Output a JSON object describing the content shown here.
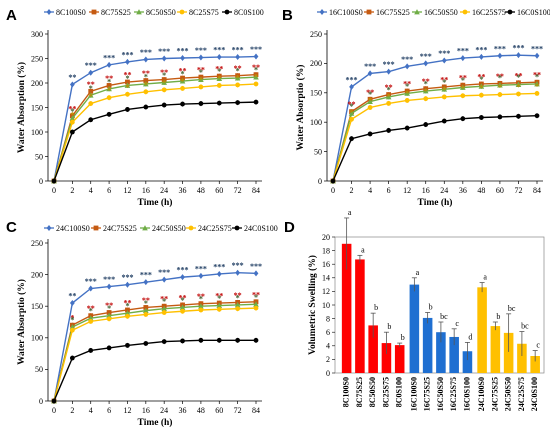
{
  "chart_data": [
    {
      "panel": "A",
      "type": "line",
      "xlabel": "Time (h)",
      "ylabel": "Water Absorption (%)",
      "x": [
        "0",
        "2",
        "4",
        "6",
        "12",
        "16",
        "24",
        "36",
        "48",
        "60",
        "72",
        "84"
      ],
      "ylim": [
        0,
        300
      ],
      "yticks": [
        0,
        50,
        100,
        150,
        200,
        250,
        300
      ],
      "legend_position": "top",
      "series": [
        {
          "name": "8C100S0",
          "color": "#4472c4",
          "marker": "diamond",
          "values": [
            0,
            197,
            221,
            237,
            243,
            248,
            250,
            251,
            252,
            253,
            253,
            254
          ],
          "sig": [
            "",
            "**",
            "***",
            "***",
            "***",
            "***",
            "***",
            "***",
            "***",
            "***",
            "***",
            "***"
          ],
          "sig_color": "#17365d"
        },
        {
          "name": "8C75S25",
          "color": "#c55a11",
          "marker": "square",
          "values": [
            0,
            133,
            183,
            195,
            202,
            205,
            207,
            210,
            212,
            214,
            215,
            217
          ],
          "sig": [
            "",
            "**",
            "**",
            "**",
            "**",
            "**",
            "**",
            "**",
            "**",
            "**",
            "**",
            "**"
          ],
          "sig_color": "#c00000"
        },
        {
          "name": "8C50S50",
          "color": "#70ad47",
          "marker": "triangle",
          "values": [
            0,
            128,
            175,
            188,
            195,
            198,
            201,
            204,
            207,
            209,
            210,
            212
          ],
          "sig": [
            "",
            "*",
            "*",
            "*",
            "*",
            "*",
            "*",
            "*",
            "*",
            "*",
            "*",
            "*"
          ],
          "sig_color": "#375623"
        },
        {
          "name": "8C25S75",
          "color": "#ffc000",
          "marker": "circle",
          "values": [
            0,
            120,
            158,
            170,
            177,
            182,
            186,
            189,
            192,
            195,
            196,
            198
          ],
          "sig": [
            "",
            "*",
            "*",
            "*",
            "*",
            "*",
            "*",
            "*",
            "*",
            "*",
            "*",
            "*"
          ],
          "sig_color": "#bf8f00"
        },
        {
          "name": "8C0S100",
          "color": "#000000",
          "marker": "circle",
          "values": [
            0,
            100,
            125,
            136,
            146,
            151,
            155,
            157,
            158,
            159,
            160,
            161
          ],
          "sig": [
            "",
            "",
            "",
            "",
            "",
            "",
            "",
            "",
            "",
            "",
            "",
            ""
          ],
          "sig_color": "#000000"
        }
      ]
    },
    {
      "panel": "B",
      "type": "line",
      "xlabel": "Time (h)",
      "ylabel": "Water Absorptio (%)",
      "x": [
        "0",
        "2",
        "4",
        "6",
        "12",
        "16",
        "24",
        "36",
        "48",
        "60",
        "72",
        "84"
      ],
      "ylim": [
        0,
        250
      ],
      "yticks": [
        0,
        50,
        100,
        150,
        200,
        250
      ],
      "legend_position": "top",
      "series": [
        {
          "name": "16C100S0",
          "color": "#4472c4",
          "marker": "diamond",
          "values": [
            0,
            160,
            183,
            186,
            195,
            200,
            205,
            209,
            211,
            213,
            214,
            213
          ],
          "sig": [
            "",
            "***",
            "***",
            "***",
            "***",
            "***",
            "***",
            "***",
            "***",
            "***",
            "***",
            "***"
          ],
          "sig_color": "#17365d"
        },
        {
          "name": "16C75S25",
          "color": "#c55a11",
          "marker": "square",
          "values": [
            0,
            118,
            139,
            147,
            153,
            157,
            160,
            163,
            165,
            166,
            167,
            168
          ],
          "sig": [
            "",
            "**",
            "**",
            "**",
            "**",
            "**",
            "**",
            "**",
            "**",
            "**",
            "**",
            "**"
          ],
          "sig_color": "#c00000"
        },
        {
          "name": "16C50S50",
          "color": "#70ad47",
          "marker": "triangle",
          "values": [
            0,
            115,
            135,
            143,
            149,
            153,
            156,
            159,
            161,
            163,
            164,
            165
          ],
          "sig": [
            "",
            "*",
            "*",
            "*",
            "*",
            "*",
            "*",
            "*",
            "*",
            "*",
            "*",
            "*"
          ],
          "sig_color": "#375623"
        },
        {
          "name": "16C25S75",
          "color": "#ffc000",
          "marker": "circle",
          "values": [
            0,
            105,
            125,
            132,
            137,
            140,
            143,
            145,
            146,
            147,
            148,
            149
          ],
          "sig": [
            "",
            "*",
            "*",
            "*",
            "*",
            "*",
            "*",
            "*",
            "*",
            "*",
            "*",
            "*"
          ],
          "sig_color": "#bf8f00"
        },
        {
          "name": "16C0S100",
          "color": "#000000",
          "marker": "circle",
          "values": [
            0,
            72,
            80,
            86,
            90,
            96,
            102,
            106,
            108,
            109,
            110,
            111
          ],
          "sig": [
            "",
            "",
            "",
            "",
            "",
            "",
            "",
            "",
            "",
            "",
            "",
            ""
          ],
          "sig_color": "#000000"
        }
      ]
    },
    {
      "panel": "C",
      "type": "line",
      "xlabel": "Time (h)",
      "ylabel": "Water Absorptio (%)",
      "x": [
        "0",
        "2",
        "4",
        "6",
        "12",
        "16",
        "24",
        "36",
        "48",
        "60",
        "72",
        "84"
      ],
      "ylim": [
        0,
        250
      ],
      "yticks": [
        0,
        50,
        100,
        150,
        200,
        250
      ],
      "legend_position": "top",
      "series": [
        {
          "name": "24C100S0",
          "color": "#4472c4",
          "marker": "diamond",
          "values": [
            0,
            155,
            178,
            181,
            184,
            188,
            192,
            196,
            198,
            201,
            203,
            202
          ],
          "sig": [
            "",
            "**",
            "***",
            "***",
            "***",
            "***",
            "***",
            "***",
            "***",
            "***",
            "***",
            "***"
          ],
          "sig_color": "#17365d"
        },
        {
          "name": "24C75S25",
          "color": "#c55a11",
          "marker": "square",
          "values": [
            0,
            120,
            135,
            140,
            144,
            148,
            150,
            152,
            154,
            155,
            156,
            157
          ],
          "sig": [
            "",
            "*",
            "**",
            "**",
            "**",
            "**",
            "**",
            "**",
            "**",
            "**",
            "**",
            "**"
          ],
          "sig_color": "#c00000"
        },
        {
          "name": "24C50S50",
          "color": "#70ad47",
          "marker": "triangle",
          "values": [
            0,
            117,
            131,
            135,
            139,
            143,
            146,
            148,
            150,
            151,
            152,
            153
          ],
          "sig": [
            "",
            "*",
            "*",
            "*",
            "*",
            "*",
            "*",
            "*",
            "*",
            "*",
            "*",
            "*"
          ],
          "sig_color": "#375623"
        },
        {
          "name": "24C25S75",
          "color": "#ffc000",
          "marker": "circle",
          "values": [
            0,
            112,
            126,
            130,
            134,
            137,
            140,
            142,
            144,
            145,
            146,
            147
          ],
          "sig": [
            "",
            "",
            "",
            "",
            "",
            "",
            "",
            "",
            "",
            "",
            "",
            ""
          ],
          "sig_color": "#bf8f00"
        },
        {
          "name": "24C0S100",
          "color": "#000000",
          "marker": "circle",
          "values": [
            0,
            68,
            80,
            84,
            88,
            91,
            94,
            95,
            96,
            96,
            96,
            96
          ],
          "sig": [
            "",
            "",
            "",
            "",
            "",
            "",
            "",
            "",
            "",
            "",
            "",
            ""
          ],
          "sig_color": "#000000"
        }
      ]
    },
    {
      "panel": "D",
      "type": "bar",
      "ylabel": "Volumetric Swelling (%)",
      "ylim": [
        0,
        20
      ],
      "yticks": [
        0,
        2,
        4,
        6,
        8,
        10,
        12,
        14,
        16,
        18,
        20
      ],
      "categories": [
        "8C100S0",
        "8C75S25",
        "8C50S50",
        "8C25S75",
        "8C0S100",
        "16C100S0",
        "16C75S25",
        "16C50S50",
        "16C25S75",
        "16C0S100",
        "24C100S0",
        "24C75S25",
        "24C50S50",
        "24C25S75",
        "24C0S100"
      ],
      "values": [
        19.0,
        16.7,
        7.0,
        4.4,
        4.1,
        13.0,
        8.1,
        6.0,
        5.3,
        3.2,
        12.6,
        6.9,
        5.9,
        4.3,
        2.5
      ],
      "errors": [
        3.8,
        0.6,
        1.8,
        1.6,
        0.3,
        1.0,
        0.8,
        1.5,
        1.2,
        1.3,
        0.7,
        0.6,
        2.8,
        1.8,
        0.8
      ],
      "letters": [
        "a",
        "a",
        "b",
        "b",
        "b",
        "a",
        "b",
        "bc",
        "c",
        "d",
        "a",
        "b",
        "bc",
        "bc",
        "c"
      ],
      "colors": [
        "#ff0000",
        "#ff0000",
        "#ff0000",
        "#ff0000",
        "#ff0000",
        "#1f6fd1",
        "#1f6fd1",
        "#1f6fd1",
        "#1f6fd1",
        "#1f6fd1",
        "#ffc000",
        "#ffc000",
        "#ffc000",
        "#ffc000",
        "#ffc000"
      ]
    }
  ]
}
